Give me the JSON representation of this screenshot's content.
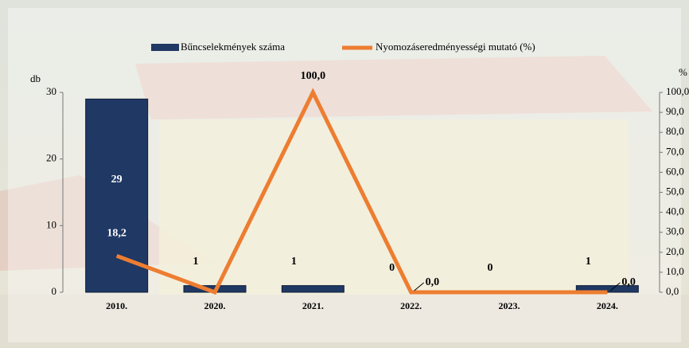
{
  "chart_data": {
    "type": "bar-line",
    "categories": [
      "2010.",
      "2020.",
      "2021.",
      "2022.",
      "2023.",
      "2024."
    ],
    "ylabel": "db",
    "y2label": "%",
    "ylim": [
      0,
      30
    ],
    "yticks": [
      0,
      10,
      20,
      30
    ],
    "y2lim": [
      0,
      100
    ],
    "y2ticks": [
      {
        "value": 0,
        "label": "0,0"
      },
      {
        "value": 10,
        "label": "10,0"
      },
      {
        "value": 20,
        "label": "20,0"
      },
      {
        "value": 30,
        "label": "30,0"
      },
      {
        "value": 40,
        "label": "40,0"
      },
      {
        "value": 50,
        "label": "50,0"
      },
      {
        "value": 60,
        "label": "60,0"
      },
      {
        "value": 70,
        "label": "70,0"
      },
      {
        "value": 80,
        "label": "80,0"
      },
      {
        "value": 90,
        "label": "90,0"
      },
      {
        "value": 100,
        "label": "100,0"
      }
    ],
    "series": [
      {
        "name": "Bűncselekmények száma",
        "type": "bar",
        "color": "#1f3864",
        "values": [
          29,
          1,
          1,
          0,
          0,
          1
        ]
      },
      {
        "name": "Nyomozáseredményességi mutató (%)",
        "type": "line",
        "axis": "y2",
        "color": "#ed7d31",
        "values": [
          18.2,
          0.0,
          100.0,
          0.0,
          0.0,
          0.0
        ],
        "value_labels": [
          "18,2",
          null,
          "100,0",
          "0,0",
          null,
          "0,0"
        ]
      }
    ]
  }
}
